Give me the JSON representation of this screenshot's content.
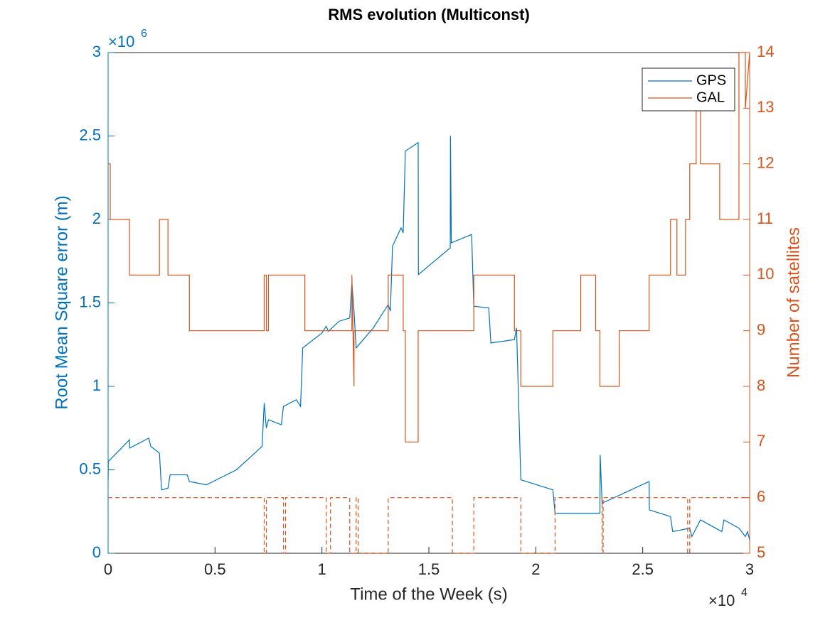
{
  "chart_data": {
    "type": "line",
    "title": "RMS evolution (Multiconst)",
    "xlabel": "Time of the Week (s)",
    "ylabel": "Root Mean Square error (m)",
    "y2label": "Number of satellites",
    "x_exponent": {
      "base": "×10",
      "power": "4"
    },
    "y_exponent": {
      "base": "×10",
      "power": "6"
    },
    "xlim": [
      0,
      3
    ],
    "xticks": [
      0,
      0.5,
      1,
      1.5,
      2,
      2.5,
      3
    ],
    "ylim": [
      0,
      3
    ],
    "yticks": [
      0,
      0.5,
      1,
      1.5,
      2,
      2.5,
      3
    ],
    "y2lim": [
      5,
      14
    ],
    "y2ticks": [
      5,
      6,
      7,
      8,
      9,
      10,
      11,
      12,
      13,
      14
    ],
    "grid": false,
    "legend": "upper right",
    "y_color": "#0072bd",
    "y2_color": "#d95319",
    "series": [
      {
        "name": "GPS",
        "color": "#0072bd",
        "axis": "y",
        "x": [
          0,
          0.001,
          0.1,
          0.101,
          0.19,
          0.2,
          0.24,
          0.25,
          0.28,
          0.29,
          0.37,
          0.38,
          0.46,
          0.6,
          0.72,
          0.73,
          0.74,
          0.75,
          0.81,
          0.82,
          0.88,
          0.9,
          0.91,
          1.0,
          1.02,
          1.03,
          1.08,
          1.13,
          1.14,
          1.15,
          1.16,
          1.24,
          1.28,
          1.31,
          1.32,
          1.33,
          1.37,
          1.38,
          1.39,
          1.45,
          1.451,
          1.6,
          1.601,
          1.605,
          1.7,
          1.71,
          1.78,
          1.79,
          1.9,
          1.91,
          1.93,
          2.08,
          2.09,
          2.3,
          2.301,
          2.31,
          2.53,
          2.531,
          2.63,
          2.64,
          2.72,
          2.73,
          2.77,
          2.87,
          2.88,
          2.95,
          2.98,
          2.99,
          3.0
        ],
        "values": [
          0.44,
          0.55,
          0.68,
          0.63,
          0.69,
          0.64,
          0.6,
          0.38,
          0.39,
          0.47,
          0.47,
          0.43,
          0.41,
          0.5,
          0.64,
          0.9,
          0.75,
          0.8,
          0.77,
          0.88,
          0.92,
          0.88,
          1.23,
          1.32,
          1.36,
          1.33,
          1.39,
          1.41,
          1.62,
          1.45,
          1.23,
          1.35,
          1.43,
          1.49,
          1.45,
          1.84,
          1.95,
          1.92,
          2.41,
          2.46,
          1.67,
          1.83,
          2.5,
          1.86,
          1.91,
          1.48,
          1.47,
          1.26,
          1.28,
          1.35,
          0.44,
          0.38,
          0.24,
          0.24,
          0.59,
          0.3,
          0.43,
          0.26,
          0.22,
          0.13,
          0.15,
          0.1,
          0.2,
          0.13,
          0.2,
          0.15,
          0.1,
          0.13,
          0.08
        ]
      },
      {
        "name": "GAL",
        "color": "#d95319",
        "axis": "y2",
        "x": [
          0,
          0.01,
          0.01,
          0.1,
          0.1,
          0.24,
          0.24,
          0.28,
          0.28,
          0.38,
          0.38,
          0.73,
          0.73,
          0.74,
          0.74,
          0.75,
          0.75,
          0.92,
          0.92,
          1.14,
          1.14,
          1.15,
          1.15,
          1.16,
          1.16,
          1.31,
          1.31,
          1.38,
          1.38,
          1.39,
          1.39,
          1.45,
          1.45,
          1.71,
          1.71,
          1.9,
          1.9,
          1.93,
          1.93,
          2.08,
          2.08,
          2.21,
          2.21,
          2.28,
          2.28,
          2.3,
          2.3,
          2.39,
          2.39,
          2.53,
          2.53,
          2.63,
          2.63,
          2.66,
          2.66,
          2.7,
          2.7,
          2.72,
          2.72,
          2.75,
          2.75,
          2.77,
          2.77,
          2.8,
          2.8,
          2.86,
          2.86,
          2.95,
          2.95,
          2.98,
          2.98,
          3.0
        ],
        "values": [
          12,
          12,
          11,
          11,
          10,
          10,
          11,
          11,
          10,
          10,
          9,
          9,
          10,
          10,
          9,
          9,
          10,
          10,
          9,
          9,
          10,
          8,
          9,
          9,
          9,
          9,
          10,
          10,
          9,
          9,
          7,
          7,
          9,
          9,
          10,
          10,
          9,
          9,
          8,
          8,
          9,
          9,
          10,
          10,
          9,
          9,
          8,
          8,
          9,
          9,
          10,
          10,
          11,
          11,
          10,
          10,
          11,
          11,
          12,
          12,
          13,
          13,
          12,
          12,
          12,
          12,
          11,
          11,
          14,
          14,
          13,
          14
        ]
      },
      {
        "color": "#d95319",
        "axis": "y2",
        "dash": true,
        "x": [
          0,
          0.73,
          0.73,
          0.74,
          0.74,
          0.82,
          0.82,
          0.83,
          0.83,
          1.02,
          1.02,
          1.04,
          1.04,
          1.13,
          1.13,
          1.16,
          1.16,
          1.17,
          1.17,
          1.31,
          1.31,
          1.61,
          1.61,
          1.71,
          1.71,
          1.93,
          1.93,
          2.09,
          2.09,
          2.31,
          2.31,
          2.315,
          2.315,
          2.71,
          2.71,
          2.72,
          2.72,
          3.0
        ],
        "values": [
          6,
          6,
          5,
          5,
          6,
          6,
          5,
          5,
          6,
          6,
          5,
          5,
          6,
          6,
          5,
          5,
          6,
          6,
          5,
          5,
          6,
          6,
          5,
          5,
          6,
          6,
          5,
          5,
          6,
          6,
          5,
          5,
          6,
          6,
          5,
          5,
          6,
          6
        ]
      }
    ]
  }
}
